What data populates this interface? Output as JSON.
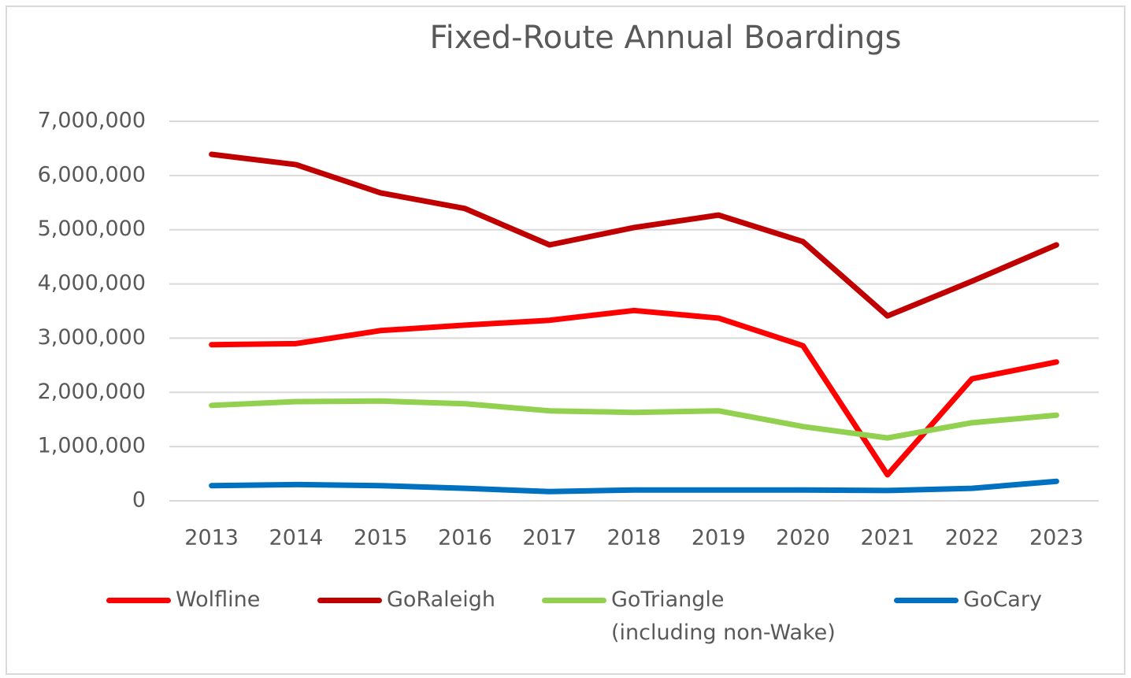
{
  "chart_data": {
    "type": "line",
    "title": "Fixed-Route Annual Boardings",
    "categories": [
      "2013",
      "2014",
      "2015",
      "2016",
      "2017",
      "2018",
      "2019",
      "2020",
      "2021",
      "2022",
      "2023"
    ],
    "series": [
      {
        "name": "Wolfline",
        "color": "#ff0000",
        "values": [
          2880000,
          2900000,
          3140000,
          3240000,
          3330000,
          3510000,
          3370000,
          2860000,
          480000,
          2250000,
          2560000
        ]
      },
      {
        "name": "GoRaleigh",
        "color": "#c00000",
        "values": [
          6390000,
          6200000,
          5680000,
          5390000,
          4720000,
          5040000,
          5270000,
          4780000,
          3410000,
          4050000,
          4720000
        ]
      },
      {
        "name": "GoTriangle\n(including non-Wake)",
        "color": "#92d050",
        "values": [
          1760000,
          1830000,
          1840000,
          1790000,
          1660000,
          1630000,
          1660000,
          1370000,
          1160000,
          1440000,
          1580000
        ]
      },
      {
        "name": "GoCary",
        "color": "#0070c0",
        "values": [
          280000,
          300000,
          280000,
          230000,
          170000,
          200000,
          200000,
          200000,
          190000,
          230000,
          360000
        ]
      }
    ],
    "ylim": [
      0,
      7000000
    ],
    "yticks": [
      0,
      {
        "value": 1000000,
        "label": "1,000,000"
      },
      {
        "value": 2000000,
        "label": "2,000,000"
      },
      {
        "value": 3000000,
        "label": "3,000,000"
      },
      {
        "value": 4000000,
        "label": "4,000,000"
      },
      {
        "value": 5000000,
        "label": "5,000,000"
      },
      {
        "value": 6000000,
        "label": "6,000,000"
      },
      {
        "value": 7000000,
        "label": "7,000,000"
      }
    ],
    "grid": true,
    "legend": "bottom"
  }
}
